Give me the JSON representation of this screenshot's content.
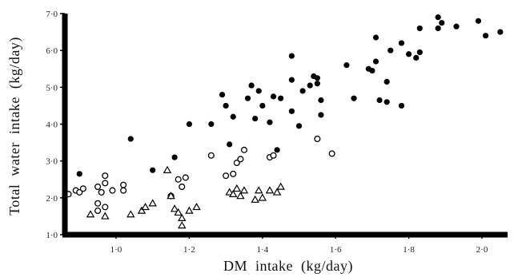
{
  "chart_data": {
    "type": "scatter",
    "title": "",
    "xlabel": "DM  intake  (kg/day)",
    "ylabel": "Total  water  intake  (kg/day)",
    "xlim": [
      0.86,
      2.07
    ],
    "ylim": [
      1.0,
      7.0
    ],
    "x_ticks": [
      {
        "value": 1.0,
        "label": "1·0"
      },
      {
        "value": 1.2,
        "label": "1·2"
      },
      {
        "value": 1.4,
        "label": "1·4"
      },
      {
        "value": 1.6,
        "label": "1·6"
      },
      {
        "value": 1.8,
        "label": "1·8"
      },
      {
        "value": 2.0,
        "label": "2·0"
      }
    ],
    "y_ticks": [
      {
        "value": 1.0,
        "label": "1·0"
      },
      {
        "value": 2.0,
        "label": "2·0"
      },
      {
        "value": 3.0,
        "label": "3·0"
      },
      {
        "value": 4.0,
        "label": "4·0"
      },
      {
        "value": 5.0,
        "label": "5·0"
      },
      {
        "value": 6.0,
        "label": "6·0"
      },
      {
        "value": 7.0,
        "label": "7·0"
      }
    ],
    "grid": false,
    "series": [
      {
        "marker": "filled-circle",
        "color": "#000000",
        "points": [
          [
            0.9,
            2.65
          ],
          [
            1.04,
            3.6
          ],
          [
            1.1,
            2.75
          ],
          [
            1.16,
            3.1
          ],
          [
            1.2,
            4.0
          ],
          [
            1.26,
            4.0
          ],
          [
            1.29,
            4.8
          ],
          [
            1.3,
            4.5
          ],
          [
            1.31,
            3.45
          ],
          [
            1.32,
            4.2
          ],
          [
            1.36,
            4.7
          ],
          [
            1.37,
            5.05
          ],
          [
            1.38,
            4.15
          ],
          [
            1.39,
            4.9
          ],
          [
            1.4,
            4.5
          ],
          [
            1.42,
            4.05
          ],
          [
            1.43,
            4.75
          ],
          [
            1.44,
            3.3
          ],
          [
            1.45,
            4.7
          ],
          [
            1.48,
            4.35
          ],
          [
            1.48,
            5.2
          ],
          [
            1.48,
            5.85
          ],
          [
            1.5,
            3.95
          ],
          [
            1.51,
            4.9
          ],
          [
            1.53,
            5.05
          ],
          [
            1.54,
            5.3
          ],
          [
            1.55,
            5.1
          ],
          [
            1.55,
            5.25
          ],
          [
            1.56,
            4.65
          ],
          [
            1.56,
            4.25
          ],
          [
            1.63,
            5.6
          ],
          [
            1.65,
            4.7
          ],
          [
            1.69,
            5.5
          ],
          [
            1.7,
            5.45
          ],
          [
            1.71,
            5.7
          ],
          [
            1.71,
            6.35
          ],
          [
            1.72,
            4.65
          ],
          [
            1.74,
            4.6
          ],
          [
            1.74,
            5.15
          ],
          [
            1.75,
            6.0
          ],
          [
            1.78,
            4.5
          ],
          [
            1.78,
            6.2
          ],
          [
            1.8,
            5.9
          ],
          [
            1.82,
            5.8
          ],
          [
            1.83,
            5.95
          ],
          [
            1.83,
            6.6
          ],
          [
            1.88,
            6.6
          ],
          [
            1.88,
            6.9
          ],
          [
            1.89,
            6.75
          ],
          [
            1.93,
            6.65
          ],
          [
            1.99,
            6.8
          ],
          [
            2.01,
            6.4
          ],
          [
            2.05,
            6.5
          ]
        ]
      },
      {
        "marker": "open-circle",
        "color": "#000000",
        "points": [
          [
            0.87,
            2.1
          ],
          [
            0.89,
            2.2
          ],
          [
            0.9,
            2.15
          ],
          [
            0.91,
            2.25
          ],
          [
            0.95,
            2.3
          ],
          [
            0.96,
            2.15
          ],
          [
            0.97,
            2.6
          ],
          [
            0.97,
            2.4
          ],
          [
            0.95,
            1.85
          ],
          [
            0.97,
            1.75
          ],
          [
            0.95,
            1.65
          ],
          [
            0.99,
            2.2
          ],
          [
            1.02,
            2.35
          ],
          [
            1.02,
            2.2
          ],
          [
            1.15,
            2.05
          ],
          [
            1.17,
            2.5
          ],
          [
            1.18,
            2.3
          ],
          [
            1.19,
            2.55
          ],
          [
            1.26,
            3.15
          ],
          [
            1.3,
            2.6
          ],
          [
            1.32,
            2.65
          ],
          [
            1.33,
            2.95
          ],
          [
            1.34,
            3.05
          ],
          [
            1.35,
            3.3
          ],
          [
            1.42,
            3.1
          ],
          [
            1.43,
            3.15
          ],
          [
            1.55,
            3.6
          ],
          [
            1.59,
            3.2
          ]
        ]
      },
      {
        "marker": "open-triangle",
        "color": "#000000",
        "points": [
          [
            0.93,
            1.55
          ],
          [
            0.97,
            1.5
          ],
          [
            1.04,
            1.55
          ],
          [
            1.07,
            1.65
          ],
          [
            1.08,
            1.75
          ],
          [
            1.1,
            1.85
          ],
          [
            1.14,
            2.75
          ],
          [
            1.15,
            2.05
          ],
          [
            1.16,
            1.7
          ],
          [
            1.17,
            1.6
          ],
          [
            1.18,
            1.45
          ],
          [
            1.18,
            1.25
          ],
          [
            1.2,
            1.65
          ],
          [
            1.22,
            1.75
          ],
          [
            1.31,
            2.15
          ],
          [
            1.32,
            2.1
          ],
          [
            1.33,
            2.25
          ],
          [
            1.34,
            2.05
          ],
          [
            1.35,
            2.2
          ],
          [
            1.38,
            1.95
          ],
          [
            1.39,
            2.2
          ],
          [
            1.4,
            2.0
          ],
          [
            1.42,
            2.2
          ],
          [
            1.44,
            2.15
          ],
          [
            1.45,
            2.3
          ]
        ]
      }
    ]
  }
}
